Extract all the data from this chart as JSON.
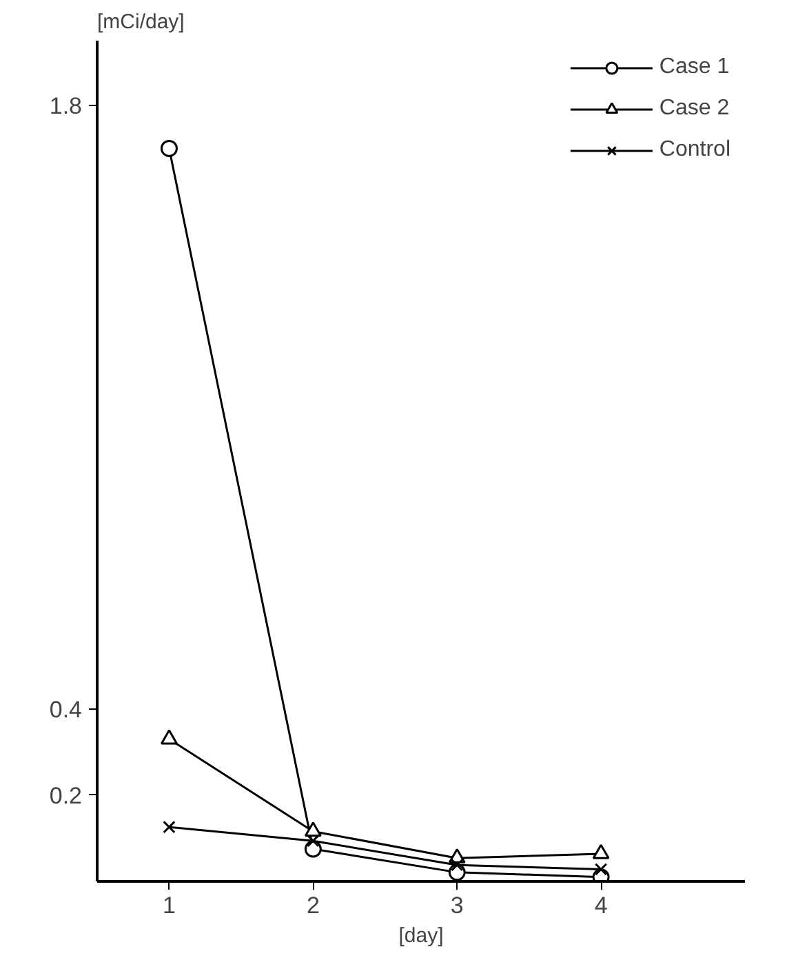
{
  "chart_data": {
    "type": "line",
    "ylabel": "[mCi/day]",
    "xlabel": "[day]",
    "x": [
      1,
      2,
      3,
      4
    ],
    "xlim": [
      0.5,
      5.0
    ],
    "xticks": [
      1,
      2,
      3,
      4
    ],
    "ylim": [
      0,
      1.95
    ],
    "yticks": [
      0.2,
      0.4,
      1.8
    ],
    "grid": false,
    "legend": "top right",
    "line_style": "solid",
    "series": [
      {
        "name": "Case 1",
        "color": "#000000",
        "marker": "circle",
        "values": [
          1.7,
          0.075,
          0.021,
          0.01
        ]
      },
      {
        "name": "Case 2",
        "color": "#000000",
        "marker": "triangle",
        "values": [
          0.33,
          0.116,
          0.054,
          0.064
        ]
      },
      {
        "name": "Control",
        "color": "#000000",
        "marker": "cross",
        "values": [
          0.126,
          0.094,
          0.038,
          0.028
        ]
      }
    ]
  }
}
